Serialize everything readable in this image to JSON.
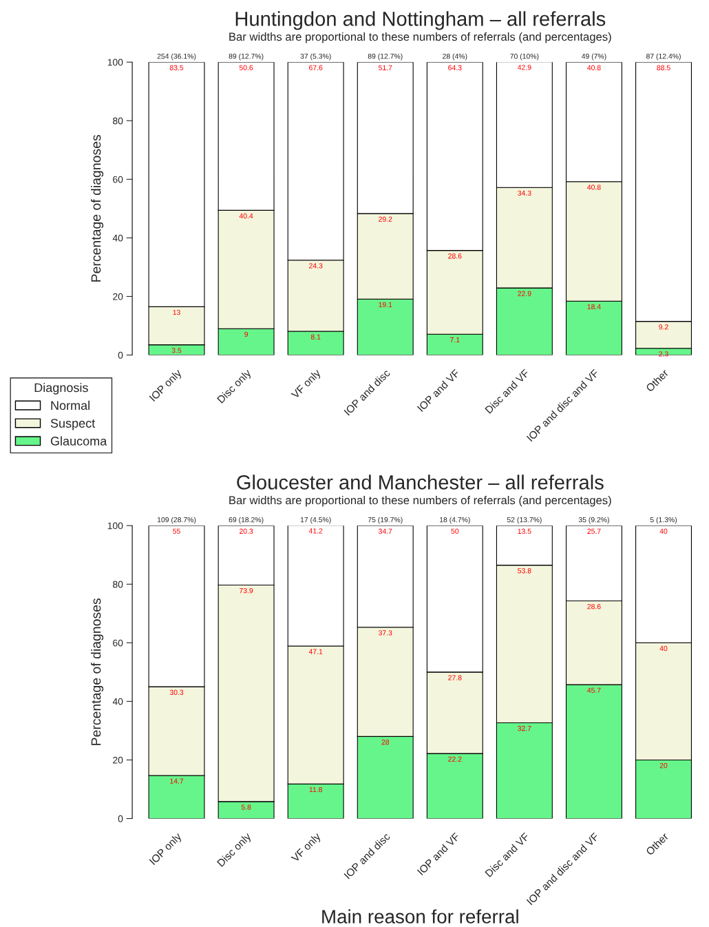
{
  "chart_data": [
    {
      "type": "bar",
      "stacked": true,
      "title": "Huntingdon and Nottingham – all referrals",
      "subtitle": "Bar widths are proportional to these numbers of referrals (and percentages)",
      "ylabel": "Percentage of diagnoses",
      "legend_title": "Diagnosis",
      "legend": "bottom left",
      "categories": [
        "IOP only",
        "Disc only",
        "VF only",
        "IOP and disc",
        "IOP and VF",
        "Disc and VF",
        "IOP and disc and VF",
        "Other"
      ],
      "totals": [
        "254 (36.1%)",
        "89 (12.7%)",
        "37 (5.3%)",
        "89 (12.7%)",
        "28 (4%)",
        "70 (10%)",
        "49 (7%)",
        "87 (12.4%)"
      ],
      "series": [
        {
          "name": "Glaucoma",
          "color": "#66f58a",
          "values": [
            3.5,
            9,
            8.1,
            19.1,
            7.1,
            22.9,
            18.4,
            2.3
          ]
        },
        {
          "name": "Suspect",
          "color": "#f3f5dc",
          "values": [
            13,
            40.4,
            24.3,
            29.2,
            28.6,
            34.3,
            40.8,
            9.2
          ]
        },
        {
          "name": "Normal",
          "color": "#ffffff",
          "values": [
            83.5,
            50.6,
            67.6,
            51.7,
            64.3,
            42.9,
            40.8,
            88.5
          ]
        }
      ],
      "data_labels": true,
      "ylim": [
        0,
        100
      ],
      "yticks": [
        0,
        20,
        40,
        60,
        80,
        100
      ],
      "grid": false
    },
    {
      "type": "bar",
      "stacked": true,
      "title": "Gloucester and Manchester – all referrals",
      "subtitle": "Bar widths are proportional to these numbers of referrals (and percentages)",
      "ylabel": "Percentage of diagnoses",
      "xlabel": "Main reason for referral",
      "categories": [
        "IOP only",
        "Disc only",
        "VF only",
        "IOP and disc",
        "IOP and VF",
        "Disc and VF",
        "IOP and disc and VF",
        "Other"
      ],
      "totals": [
        "109 (28.7%)",
        "69 (18.2%)",
        "17 (4.5%)",
        "75 (19.7%)",
        "18 (4.7%)",
        "52 (13.7%)",
        "35 (9.2%)",
        "5 (1.3%)"
      ],
      "series": [
        {
          "color": "#66f58a",
          "values": [
            14.7,
            5.8,
            11.8,
            28,
            22.2,
            32.7,
            45.7,
            20
          ]
        },
        {
          "color": "#f3f5dc",
          "values": [
            30.3,
            73.9,
            47.1,
            37.3,
            27.8,
            53.8,
            28.6,
            40
          ]
        },
        {
          "color": "#ffffff",
          "values": [
            55,
            20.3,
            41.2,
            34.7,
            50,
            13.5,
            25.7,
            40
          ]
        }
      ],
      "data_labels": true,
      "ylim": [
        0,
        100
      ],
      "yticks": [
        0,
        20,
        40,
        60,
        80,
        100
      ],
      "grid": false
    }
  ]
}
